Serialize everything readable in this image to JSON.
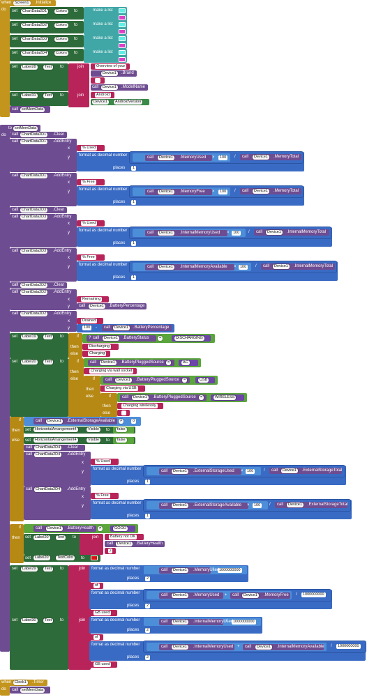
{
  "blocks": {
    "when_label": "when",
    "do_label": "do",
    "set_label": "set",
    "to_label": "to",
    "call_label": "call",
    "if_label": "if",
    "then_label": "then",
    "else_label": "else",
    "x_label": "x",
    "y_label": "y",
    "places_label": "places",
    "join_label": "join",
    "make_list_label": "make a list",
    "format_label": "format as decimal number",
    "number_label": "number",
    "screen1": "Screen1",
    "initialize": ".Initialize",
    "chartdata2d1": "ChartData2D1",
    "chartdata2d2": "ChartData2D2",
    "chartdata2d3": "ChartData2D3",
    "chartdata2d4": "ChartData2D4",
    "colors": "Colors",
    "label28": "Label28",
    "label31": "Label31",
    "label19": "Label19",
    "label20": "Label20",
    "label29": "Label29",
    "label30": "Label30",
    "text_prop": "Text",
    "textcolor_prop": "TextColor",
    "visible_prop": "Visible",
    "overview_text": "Overview of your",
    "device1": "Device1",
    "brand": ".Brand",
    "space": " ",
    "modelname": ".ModelName",
    "android_text": "Android",
    "androidversion": "AndroidVersion",
    "setmemdata": "setMemData",
    "to_proc": "to",
    "clear": ".Clear",
    "addentry": ".AddEntry",
    "pct_used": "% Used",
    "pct_free": "% Free",
    "memoryused": ".MemoryUsed",
    "memorytotal": ".MemoryTotal",
    "memoryfree": ".MemoryFree",
    "internalmemoryused": ".InternalMemoryUsed",
    "internalmemorytotal": ".InternalMemoryTotal",
    "internalmemoryavailable": ".InternalMemoryAvailable",
    "remaining": "Remaining",
    "batterypercentage": ".BatteryPercentage",
    "drained": "Drained",
    "n100": "100",
    "n1": "1",
    "n2": "2",
    "n0": "0",
    "batterystatus": ".BatteryStatus",
    "discharging_const": "DISCHARGING",
    "discharging": "Discharging",
    "charging": "Charging",
    "batterypluggedsource": ".BatteryPluggedSource",
    "ac_const": "AC",
    "charging_wall": "Charging via wall socket",
    "usb_const": "USB",
    "charging_usb": "Charging via USB",
    "wireless_const": "WIRELESS",
    "charging_wireless": "Charging wirelessly",
    "externalstorageavailable": ".ExternalStorageAvailable",
    "externalstorageused": ".ExternalStorageUsed",
    "externalstoragetotal": ".ExternalStorageTotal",
    "horizontalarrangement4": "HorizontalArrangement4",
    "false_val": "false",
    "batteryhealth": ".BatteryHealth",
    "good_const": "GOOD",
    "battery_not_ok": "Battery not OK ",
    "n1000000000": "1000000000",
    "of_text": " of ",
    "gb_used": " GB used",
    "clock1": "Clock1",
    "timer": ".Timer",
    "eq": "=",
    "neq": "≠",
    "times": "×",
    "div": "/",
    "plus": "+"
  },
  "colors": {
    "event": "#c4951d",
    "setter": "#2e6b3a",
    "component": "#6e4c91",
    "text": "#b8245a",
    "math": "#3a6bc4",
    "list": "#40a6a6",
    "control": "#b68915",
    "list_item_cyan": "#5cf0e6",
    "list_item_pink": "#e040c8",
    "red_swatch": "#e01010"
  }
}
